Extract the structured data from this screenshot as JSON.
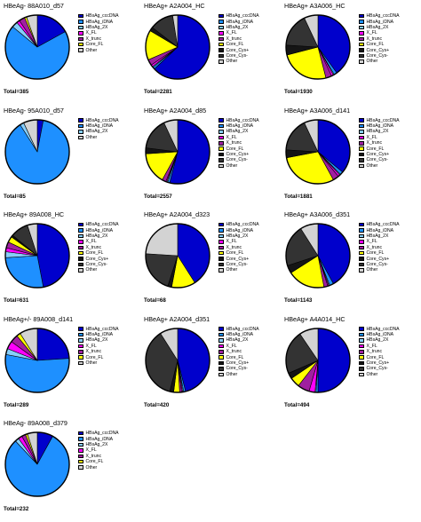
{
  "chart_data": [
    {
      "type": "pie",
      "title": "HBeAg- 88A010_d57",
      "total": "Total=385",
      "legend": [
        "HBsAg_cccDNA",
        "HBsAg_iDNA",
        "HBsAg_2X",
        "X_FL",
        "X_trunc",
        "Core_FL",
        "Other"
      ],
      "slices": [
        {
          "name": "HBsAg_cccDNA",
          "value": 17
        },
        {
          "name": "HBsAg_iDNA",
          "value": 69
        },
        {
          "name": "HBsAg_2X",
          "value": 3
        },
        {
          "name": "X_FL",
          "value": 1.5
        },
        {
          "name": "X_trunc",
          "value": 3
        },
        {
          "name": "Core_FL",
          "value": 1
        },
        {
          "name": "Other",
          "value": 5.5
        }
      ]
    },
    {
      "type": "pie",
      "title": "HBeAg+ A2A004_HC",
      "total": "Total=2281",
      "legend": [
        "HBsAg_cccDNA",
        "HBsAg_iDNA",
        "HBsAg_2X",
        "X_FL",
        "X_trunc",
        "Core_FL",
        "Core_Cys+",
        "Core_Cys-",
        "Other"
      ],
      "slices": [
        {
          "name": "HBsAg_cccDNA",
          "value": 63
        },
        {
          "name": "HBsAg_iDNA",
          "value": 1
        },
        {
          "name": "HBsAg_2X",
          "value": 0.5
        },
        {
          "name": "X_FL",
          "value": 1
        },
        {
          "name": "X_trunc",
          "value": 3
        },
        {
          "name": "Core_FL",
          "value": 15
        },
        {
          "name": "Core_Cys+",
          "value": 2
        },
        {
          "name": "Core_Cys-",
          "value": 12
        },
        {
          "name": "Other",
          "value": 2.5
        }
      ]
    },
    {
      "type": "pie",
      "title": "HBeAg+ A3A006_HC",
      "total": "Total=1930",
      "legend": [
        "HBsAg_cccDNA",
        "HBsAg_iDNA",
        "HBsAg_2X",
        "X_FL",
        "X_trunc",
        "Core_FL",
        "Core_Cys+",
        "Core_Cys-",
        "Other"
      ],
      "slices": [
        {
          "name": "HBsAg_cccDNA",
          "value": 40
        },
        {
          "name": "HBsAg_iDNA",
          "value": 1.5
        },
        {
          "name": "HBsAg_2X",
          "value": 0.5
        },
        {
          "name": "X_FL",
          "value": 1
        },
        {
          "name": "X_trunc",
          "value": 3
        },
        {
          "name": "Core_FL",
          "value": 25
        },
        {
          "name": "Core_Cys+",
          "value": 5
        },
        {
          "name": "Core_Cys-",
          "value": 17
        },
        {
          "name": "Other",
          "value": 7
        }
      ]
    },
    {
      "type": "pie",
      "title": "HBeAg- 95A010_d57",
      "total": "Total=85",
      "legend": [
        "HBsAg_cccDNA",
        "HBsAg_iDNA",
        "HBsAg_2X",
        "Other"
      ],
      "slices": [
        {
          "name": "HBsAg_cccDNA",
          "value": 3
        },
        {
          "name": "HBsAg_iDNA",
          "value": 88
        },
        {
          "name": "HBsAg_2X",
          "value": 2
        },
        {
          "name": "Other",
          "value": 7
        }
      ]
    },
    {
      "type": "pie",
      "title": "HBeAg+ A2A004_d85",
      "total": "Total=2557",
      "legend": [
        "HBsAg_cccDNA",
        "HBsAg_iDNA",
        "HBsAg_2X",
        "X_FL",
        "X_trunc",
        "Core_FL",
        "Core_Cys+",
        "Core_Cys-",
        "Other"
      ],
      "slices": [
        {
          "name": "HBsAg_cccDNA",
          "value": 54
        },
        {
          "name": "HBsAg_iDNA",
          "value": 1
        },
        {
          "name": "HBsAg_2X",
          "value": 0.5
        },
        {
          "name": "X_FL",
          "value": 0.5
        },
        {
          "name": "X_trunc",
          "value": 2
        },
        {
          "name": "Core_FL",
          "value": 16
        },
        {
          "name": "Core_Cys+",
          "value": 3
        },
        {
          "name": "Core_Cys-",
          "value": 16
        },
        {
          "name": "Other",
          "value": 7
        }
      ]
    },
    {
      "type": "pie",
      "title": "HBeAg+ A3A006_d141",
      "total": "Total=1881",
      "legend": [
        "HBsAg_cccDNA",
        "HBsAg_iDNA",
        "HBsAg_2X",
        "X_FL",
        "X_trunc",
        "Core_FL",
        "Core_Cys+",
        "Core_Cys-",
        "Other"
      ],
      "slices": [
        {
          "name": "HBsAg_cccDNA",
          "value": 36
        },
        {
          "name": "HBsAg_iDNA",
          "value": 1.5
        },
        {
          "name": "HBsAg_2X",
          "value": 0.5
        },
        {
          "name": "X_FL",
          "value": 1
        },
        {
          "name": "X_trunc",
          "value": 3
        },
        {
          "name": "Core_FL",
          "value": 30
        },
        {
          "name": "Core_Cys+",
          "value": 4
        },
        {
          "name": "Core_Cys-",
          "value": 17
        },
        {
          "name": "Other",
          "value": 7
        }
      ]
    },
    {
      "type": "pie",
      "title": "HBeAg+ 89A008_HC",
      "total": "Total=631",
      "legend": [
        "HBsAg_cccDNA",
        "HBsAg_iDNA",
        "HBsAg_2X",
        "X_FL",
        "X_trunc",
        "Core_FL",
        "Core_Cys+",
        "Core_Cys-",
        "Other"
      ],
      "slices": [
        {
          "name": "HBsAg_cccDNA",
          "value": 47
        },
        {
          "name": "HBsAg_iDNA",
          "value": 27
        },
        {
          "name": "HBsAg_2X",
          "value": 3
        },
        {
          "name": "X_FL",
          "value": 2
        },
        {
          "name": "X_trunc",
          "value": 3
        },
        {
          "name": "Core_FL",
          "value": 3
        },
        {
          "name": "Core_Cys+",
          "value": 1
        },
        {
          "name": "Core_Cys-",
          "value": 9
        },
        {
          "name": "Other",
          "value": 5
        }
      ]
    },
    {
      "type": "pie",
      "title": "HBeAg+ A2A004_d323",
      "total": "Total=68",
      "legend": [
        "HBsAg_cccDNA",
        "HBsAg_iDNA",
        "HBsAg_2X",
        "X_FL",
        "X_trunc",
        "Core_FL",
        "Core_Cys+",
        "Core_Cys-",
        "Other"
      ],
      "slices": [
        {
          "name": "HBsAg_cccDNA",
          "value": 41
        },
        {
          "name": "HBsAg_iDNA",
          "value": 0
        },
        {
          "name": "HBsAg_2X",
          "value": 0
        },
        {
          "name": "X_FL",
          "value": 0
        },
        {
          "name": "X_trunc",
          "value": 0
        },
        {
          "name": "Core_FL",
          "value": 12
        },
        {
          "name": "Core_Cys+",
          "value": 2
        },
        {
          "name": "Core_Cys-",
          "value": 21
        },
        {
          "name": "Other",
          "value": 24
        }
      ]
    },
    {
      "type": "pie",
      "title": "HBeAg+ A3A006_d351",
      "total": "Total=1143",
      "legend": [
        "HBsAg_cccDNA",
        "HBsAg_iDNA",
        "HBsAg_2X",
        "X_FL",
        "X_trunc",
        "Core_FL",
        "Core_Cys+",
        "Core_Cys-",
        "Other"
      ],
      "slices": [
        {
          "name": "HBsAg_cccDNA",
          "value": 42
        },
        {
          "name": "HBsAg_iDNA",
          "value": 2
        },
        {
          "name": "HBsAg_2X",
          "value": 0.5
        },
        {
          "name": "X_FL",
          "value": 0.5
        },
        {
          "name": "X_trunc",
          "value": 2
        },
        {
          "name": "Core_FL",
          "value": 19
        },
        {
          "name": "Core_Cys+",
          "value": 4
        },
        {
          "name": "Core_Cys-",
          "value": 21
        },
        {
          "name": "Other",
          "value": 9
        }
      ]
    },
    {
      "type": "pie",
      "title": "HBeAg+/- 89A008_d141",
      "total": "Total=289",
      "legend": [
        "HBsAg_cccDNA",
        "HBsAg_iDNA",
        "HBsAg_2X",
        "X_FL",
        "X_trunc",
        "Core_FL",
        "Other"
      ],
      "slices": [
        {
          "name": "HBsAg_cccDNA",
          "value": 24
        },
        {
          "name": "HBsAg_iDNA",
          "value": 54
        },
        {
          "name": "HBsAg_2X",
          "value": 3
        },
        {
          "name": "X_FL",
          "value": 4
        },
        {
          "name": "X_trunc",
          "value": 4
        },
        {
          "name": "Core_FL",
          "value": 2
        },
        {
          "name": "Other",
          "value": 9
        }
      ]
    },
    {
      "type": "pie",
      "title": "HBeAg+ A2A004_d351",
      "total": "Total=420",
      "legend": [
        "HBsAg_cccDNA",
        "HBsAg_iDNA",
        "HBsAg_2X",
        "X_FL",
        "X_trunc",
        "Core_FL",
        "Core_Cys+",
        "Core_Cys-",
        "Other"
      ],
      "slices": [
        {
          "name": "HBsAg_cccDNA",
          "value": 46
        },
        {
          "name": "HBsAg_iDNA",
          "value": 1
        },
        {
          "name": "HBsAg_2X",
          "value": 0.5
        },
        {
          "name": "X_FL",
          "value": 0.5
        },
        {
          "name": "X_trunc",
          "value": 1
        },
        {
          "name": "Core_FL",
          "value": 3
        },
        {
          "name": "Core_Cys+",
          "value": 2
        },
        {
          "name": "Core_Cys-",
          "value": 37
        },
        {
          "name": "Other",
          "value": 9
        }
      ]
    },
    {
      "type": "pie",
      "title": "HBeAg+ A4A014_HC",
      "total": "Total=494",
      "legend": [
        "HBsAg_cccDNA",
        "HBsAg_iDNA",
        "HBsAg_2X",
        "X_FL",
        "X_trunc",
        "Core_FL",
        "Core_Cys+",
        "Core_Cys-",
        "Other"
      ],
      "slices": [
        {
          "name": "HBsAg_cccDNA",
          "value": 50
        },
        {
          "name": "HBsAg_iDNA",
          "value": 1
        },
        {
          "name": "HBsAg_2X",
          "value": 0.5
        },
        {
          "name": "X_FL",
          "value": 3
        },
        {
          "name": "X_trunc",
          "value": 6
        },
        {
          "name": "Core_FL",
          "value": 5
        },
        {
          "name": "Core_Cys+",
          "value": 3
        },
        {
          "name": "Core_Cys-",
          "value": 22
        },
        {
          "name": "Other",
          "value": 9.5
        }
      ]
    },
    {
      "type": "pie",
      "title": "HBeAg- 89A008_d379",
      "total": "Total=232",
      "legend": [
        "HBsAg_cccDNA",
        "HBsAg_iDNA",
        "HBsAg_2X",
        "X_FL",
        "X_trunc",
        "Core_FL",
        "Other"
      ],
      "slices": [
        {
          "name": "HBsAg_cccDNA",
          "value": 8
        },
        {
          "name": "HBsAg_iDNA",
          "value": 80
        },
        {
          "name": "HBsAg_2X",
          "value": 2
        },
        {
          "name": "X_FL",
          "value": 2
        },
        {
          "name": "X_trunc",
          "value": 2
        },
        {
          "name": "Core_FL",
          "value": 1
        },
        {
          "name": "Other",
          "value": 5
        }
      ]
    }
  ],
  "colors": {
    "HBsAg_cccDNA": "#0000cc",
    "HBsAg_iDNA": "#1e90ff",
    "HBsAg_2X": "#87cefa",
    "X_FL": "#ff00ff",
    "X_trunc": "#a020a0",
    "Core_FL": "#ffff00",
    "Core_Cys+": "#151515",
    "Core_Cys-": "#333333",
    "Other": "#d3d3d3"
  }
}
